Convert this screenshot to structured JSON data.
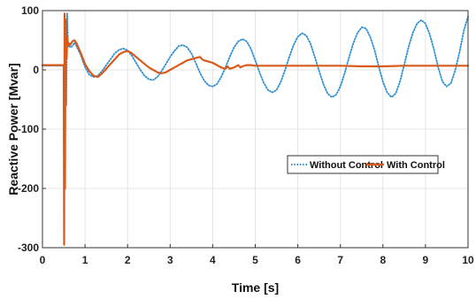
{
  "chart_data": {
    "type": "line",
    "title": "",
    "xlabel": "Time [s]",
    "ylabel": "Reactive Power [Mvar]",
    "xlim": [
      0,
      10
    ],
    "ylim": [
      -300,
      100
    ],
    "xticks": [
      "0",
      "1",
      "2",
      "3",
      "4",
      "5",
      "6",
      "7",
      "8",
      "9",
      "10"
    ],
    "yticks": [
      "100",
      "0",
      "-100",
      "-200",
      "-300"
    ],
    "grid": true,
    "legend_position": "right",
    "series": [
      {
        "name": "Without Control",
        "color": "#2b8fd6",
        "style": "dotted",
        "x": [
          0,
          0.5,
          0.52,
          0.54,
          0.56,
          0.58,
          0.6,
          0.62,
          0.66,
          0.7,
          0.75,
          0.8,
          0.9,
          1.0,
          1.1,
          1.2,
          1.3,
          1.4,
          1.5,
          1.6,
          1.7,
          1.8,
          1.9,
          2.0,
          2.1,
          2.2,
          2.3,
          2.4,
          2.5,
          2.6,
          2.7,
          2.8,
          2.9,
          3.0,
          3.1,
          3.2,
          3.3,
          3.4,
          3.5,
          3.6,
          3.7,
          3.8,
          3.9,
          4.0,
          4.1,
          4.2,
          4.3,
          4.4,
          4.5,
          4.6,
          4.7,
          4.8,
          4.9,
          5.0,
          5.1,
          5.2,
          5.3,
          5.4,
          5.5,
          5.6,
          5.7,
          5.8,
          5.9,
          6.0,
          6.1,
          6.2,
          6.3,
          6.4,
          6.5,
          6.6,
          6.7,
          6.8,
          6.9,
          7.0,
          7.1,
          7.2,
          7.3,
          7.4,
          7.5,
          7.6,
          7.7,
          7.8,
          7.9,
          8.0,
          8.1,
          8.2,
          8.3,
          8.4,
          8.5,
          8.6,
          8.7,
          8.8,
          8.9,
          9.0,
          9.1,
          9.2,
          9.3,
          9.4,
          9.5,
          9.6,
          9.7,
          9.8,
          9.9,
          10.0
        ],
        "y": [
          7,
          7,
          -150,
          80,
          -60,
          95,
          45,
          40,
          38,
          40,
          46,
          40,
          25,
          5,
          -8,
          -12,
          -10,
          -2,
          8,
          18,
          28,
          34,
          36,
          33,
          24,
          12,
          0,
          -10,
          -16,
          -17,
          -12,
          -2,
          10,
          22,
          32,
          40,
          42,
          38,
          28,
          12,
          -5,
          -18,
          -26,
          -28,
          -24,
          -12,
          4,
          22,
          38,
          48,
          52,
          48,
          35,
          16,
          -4,
          -22,
          -34,
          -38,
          -34,
          -20,
          0,
          22,
          42,
          56,
          62,
          58,
          44,
          22,
          -2,
          -24,
          -40,
          -46,
          -42,
          -28,
          -6,
          20,
          44,
          62,
          72,
          70,
          56,
          34,
          6,
          -20,
          -38,
          -46,
          -40,
          -20,
          8,
          38,
          62,
          78,
          84,
          78,
          60,
          34,
          4,
          -20,
          -28,
          -22,
          0,
          30,
          66,
          90
        ]
      },
      {
        "name": "With Control",
        "color": "#d85a1a",
        "style": "solid",
        "x": [
          0,
          0.5,
          0.51,
          0.52,
          0.53,
          0.54,
          0.55,
          0.56,
          0.57,
          0.58,
          0.6,
          0.62,
          0.65,
          0.7,
          0.75,
          0.8,
          0.9,
          1.0,
          1.1,
          1.2,
          1.3,
          1.4,
          1.5,
          1.6,
          1.7,
          1.8,
          1.9,
          2.0,
          2.05,
          2.1,
          2.2,
          2.3,
          2.4,
          2.5,
          2.6,
          2.7,
          2.8,
          2.9,
          3.0,
          3.1,
          3.2,
          3.3,
          3.4,
          3.5,
          3.6,
          3.7,
          3.75,
          3.8,
          3.9,
          4.0,
          4.1,
          4.2,
          4.3,
          4.35,
          4.4,
          4.5,
          4.6,
          4.65,
          4.7,
          4.8,
          4.9,
          5.0,
          5.5,
          6.0,
          6.5,
          7.0,
          7.5,
          8.0,
          8.5,
          9.0,
          9.5,
          10.0
        ],
        "y": [
          8,
          8,
          -295,
          95,
          -200,
          60,
          30,
          85,
          20,
          55,
          40,
          45,
          42,
          48,
          50,
          45,
          28,
          10,
          -2,
          -10,
          -12,
          -6,
          2,
          10,
          18,
          26,
          30,
          32,
          30,
          28,
          22,
          16,
          10,
          4,
          0,
          -4,
          -6,
          -4,
          0,
          4,
          8,
          12,
          16,
          18,
          20,
          22,
          18,
          16,
          14,
          12,
          8,
          4,
          2,
          6,
          2,
          4,
          8,
          4,
          6,
          8,
          8,
          7,
          7,
          7,
          7,
          7,
          6,
          6,
          7,
          7,
          7,
          7
        ]
      }
    ]
  }
}
